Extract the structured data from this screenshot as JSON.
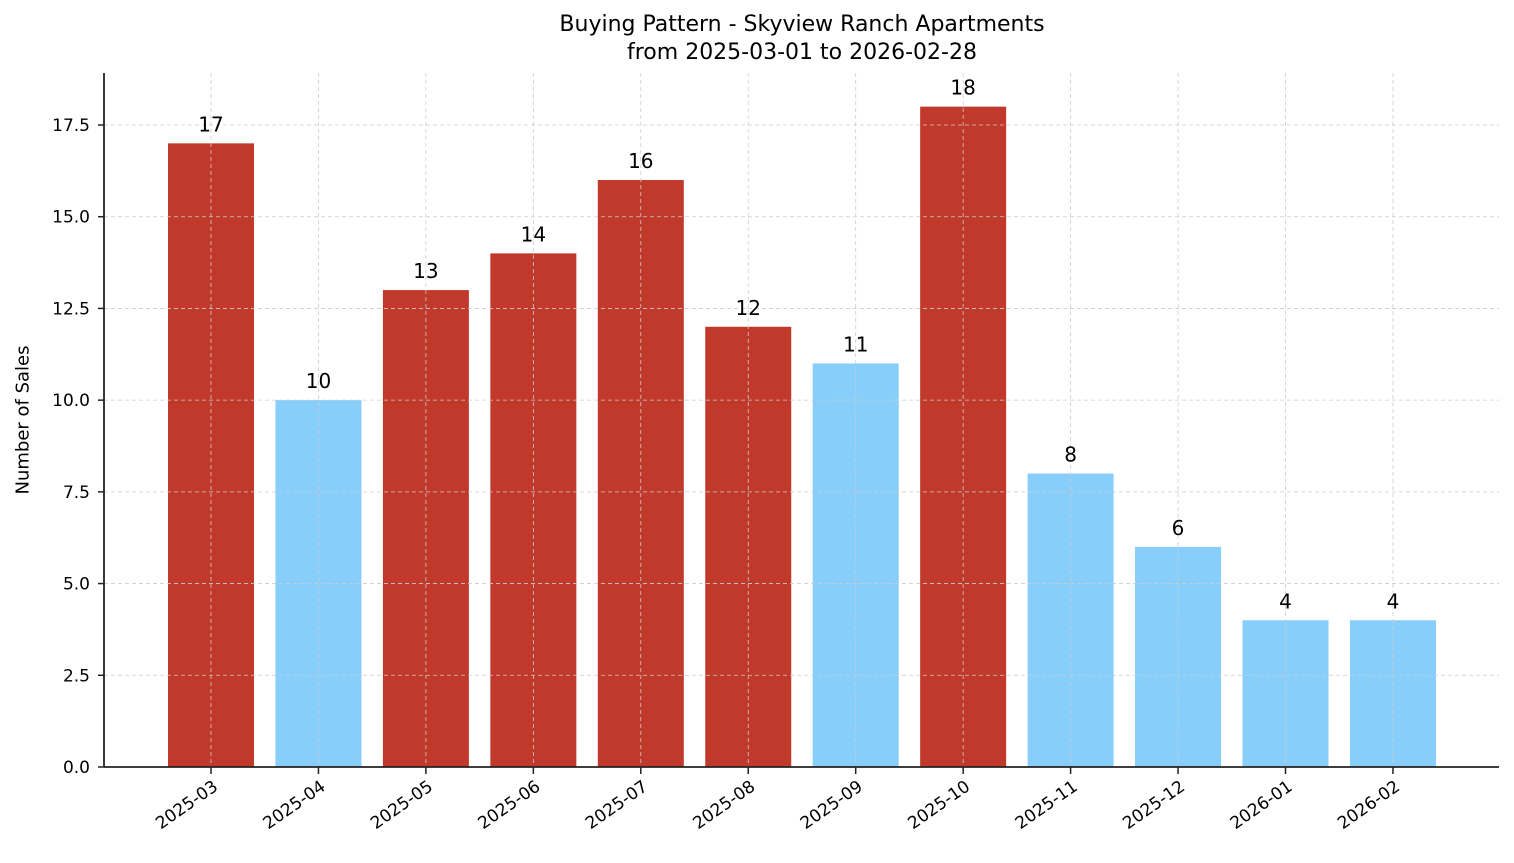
{
  "chart_data": {
    "type": "bar",
    "title": "Buying Pattern - Skyview Ranch Apartments",
    "subtitle": "from 2025-03-01 to 2026-02-28",
    "xlabel": "",
    "ylabel": "Number of Sales",
    "categories": [
      "2025-03",
      "2025-04",
      "2025-05",
      "2025-06",
      "2025-07",
      "2025-08",
      "2025-09",
      "2025-10",
      "2025-11",
      "2025-12",
      "2026-01",
      "2026-02"
    ],
    "values": [
      17,
      10,
      13,
      14,
      16,
      12,
      11,
      18,
      8,
      6,
      4,
      4
    ],
    "bar_colors": [
      "#c0392b",
      "#87cefa",
      "#c0392b",
      "#c0392b",
      "#c0392b",
      "#c0392b",
      "#87cefa",
      "#c0392b",
      "#87cefa",
      "#87cefa",
      "#87cefa",
      "#87cefa"
    ],
    "ylim": [
      0,
      18.9
    ],
    "yticks": [
      "0.0",
      "2.5",
      "5.0",
      "7.5",
      "10.0",
      "12.5",
      "15.0",
      "17.5"
    ],
    "grid": true,
    "data_labels": true
  },
  "colors": {
    "high": "#c0392b",
    "low": "#87cefa"
  }
}
